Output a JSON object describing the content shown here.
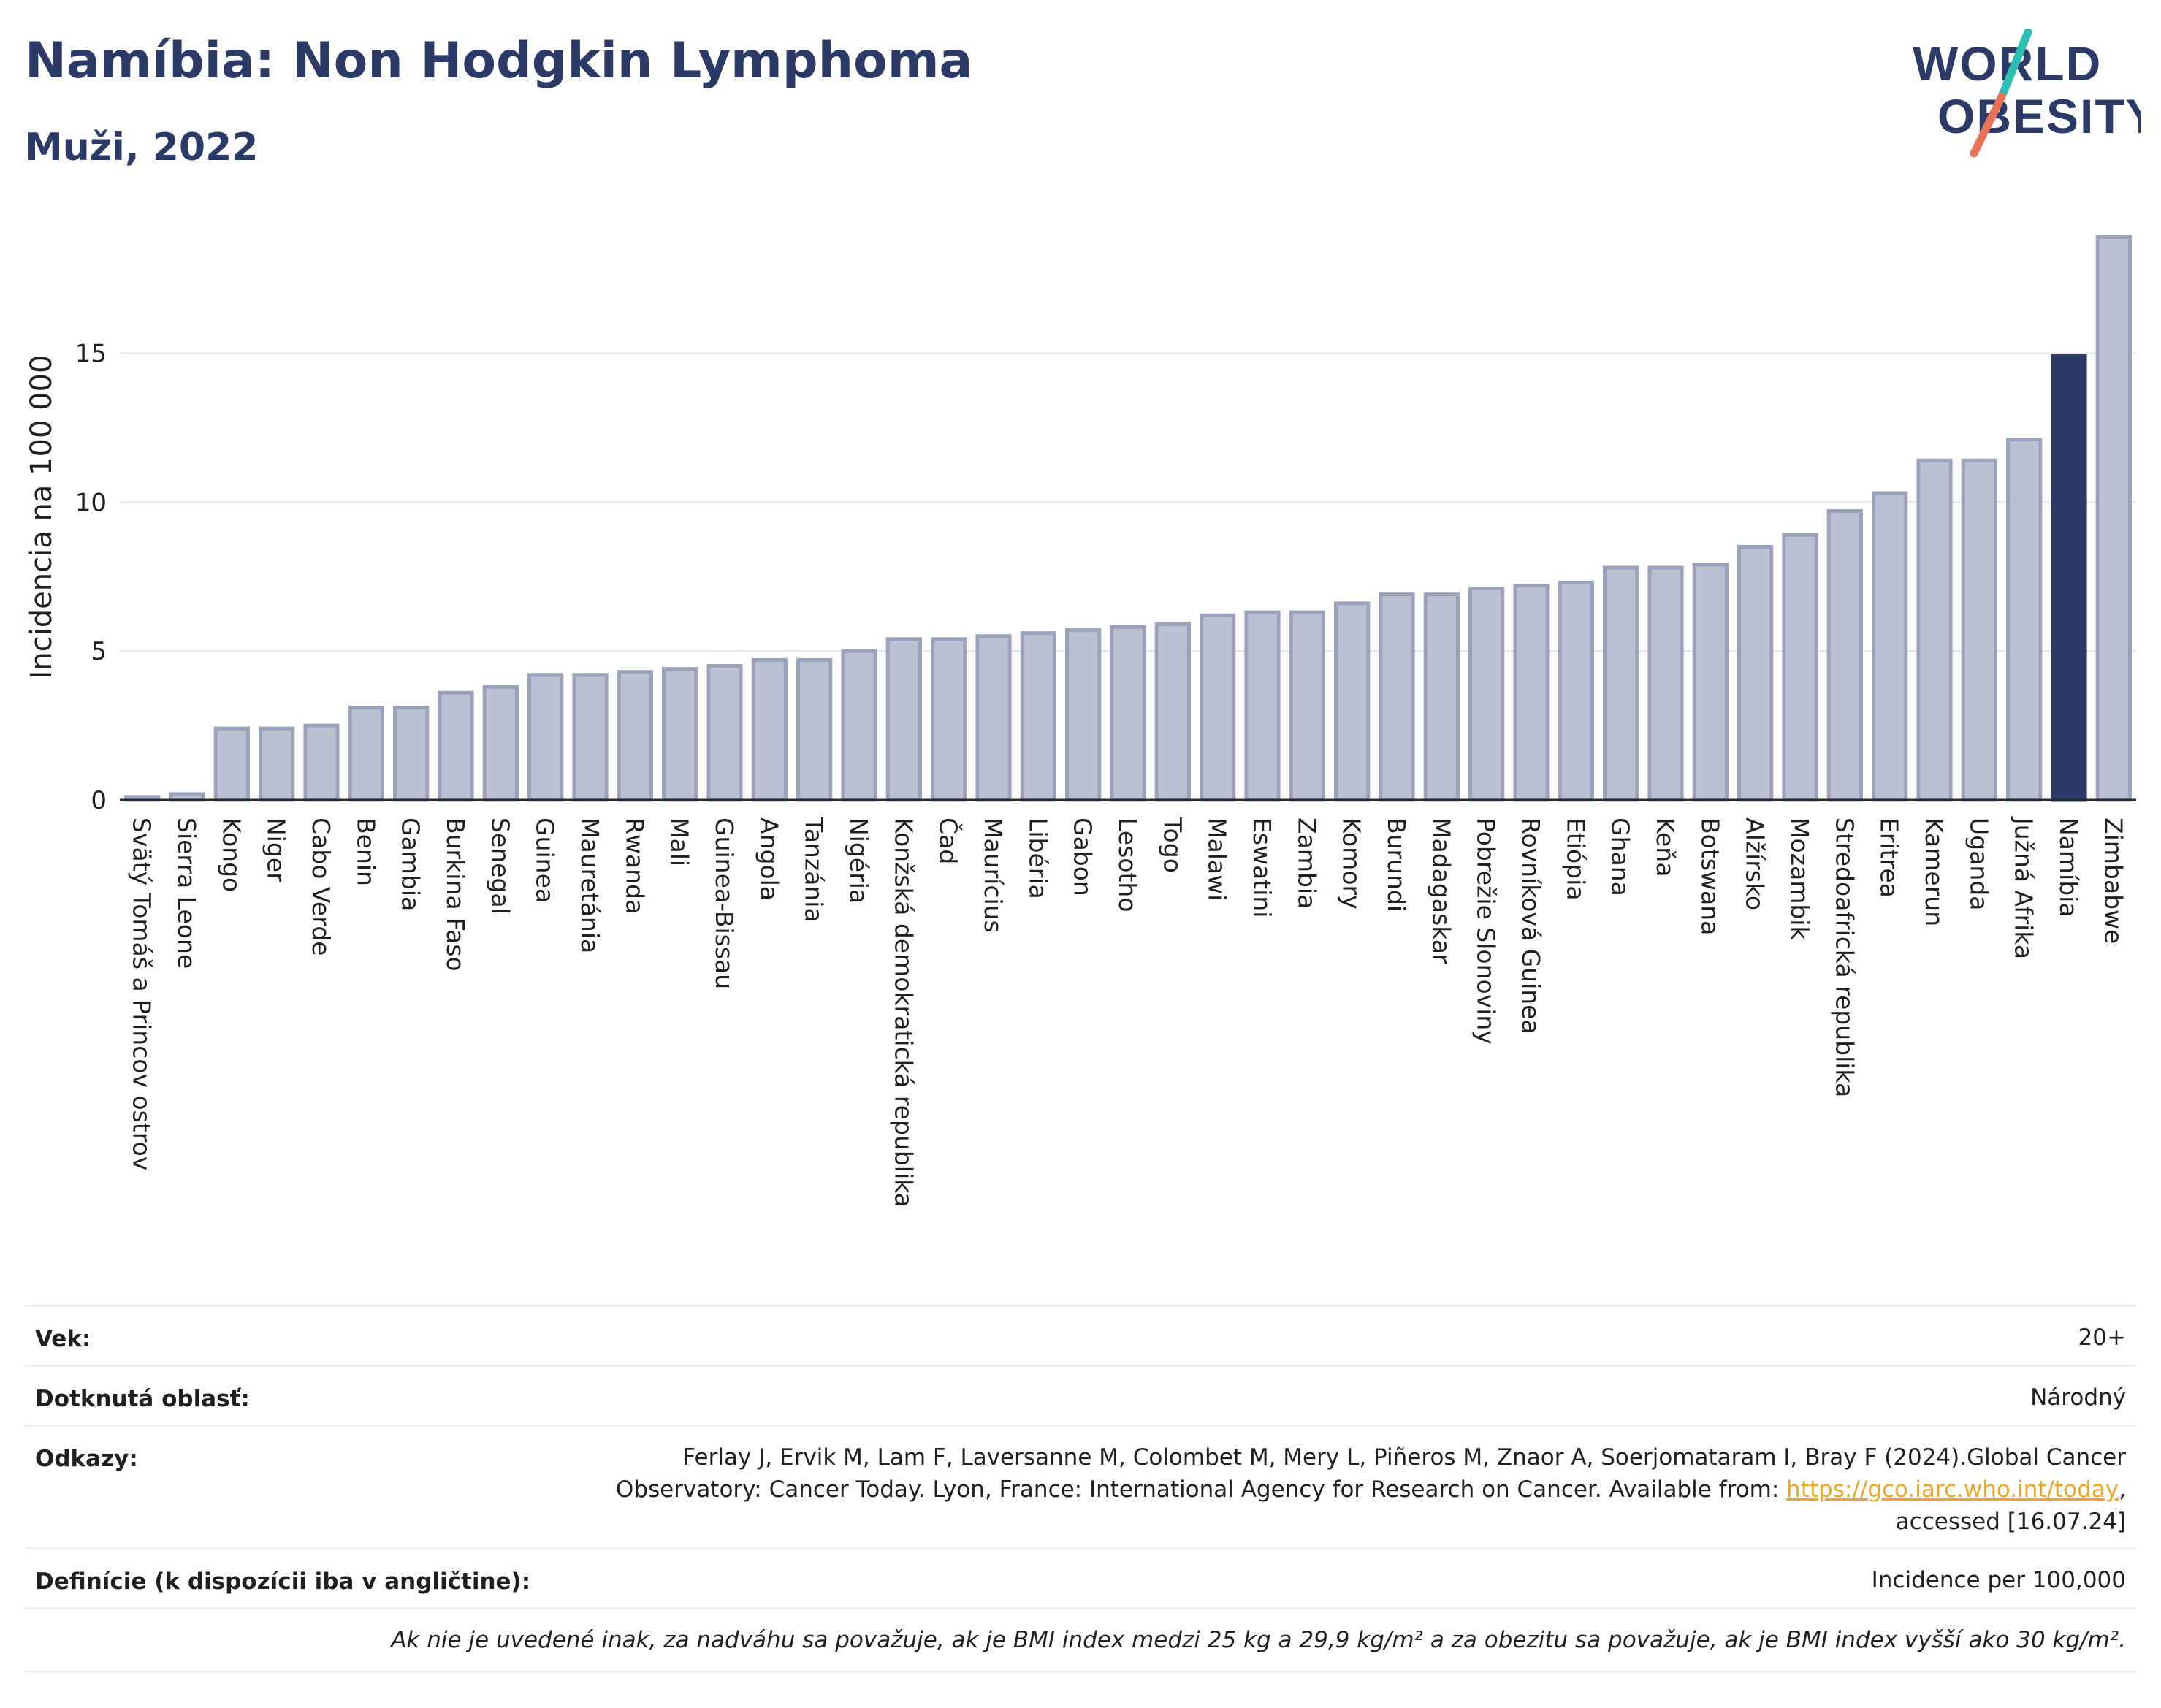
{
  "header": {
    "title": "Namíbia: Non Hodgkin Lymphoma",
    "subtitle": "Muži, 2022",
    "logo_line1": "WORLD",
    "logo_line2": "OBESITY"
  },
  "colors": {
    "title": "#2b3a67",
    "bar_default": "#bcc1d1",
    "bar_default_stroke": "#9aa1bb",
    "bar_highlight": "#2b3a67",
    "logo_text": "#2b3a67",
    "logo_slash_top": "#2bbfb3",
    "logo_slash_bottom": "#e8735a"
  },
  "chart_data": {
    "type": "bar",
    "ylabel": "Incidencia na 100 000",
    "xlabel": "",
    "ylim": [
      0,
      19.5
    ],
    "yticks": [
      0,
      5,
      10,
      15
    ],
    "grid": true,
    "highlight": "Namíbia",
    "categories": [
      "Svätý Tomáš a Princov ostrov",
      "Sierra Leone",
      "Kongo",
      "Niger",
      "Cabo Verde",
      "Benin",
      "Gambia",
      "Burkina Faso",
      "Senegal",
      "Guinea",
      "Mauretánia",
      "Rwanda",
      "Mali",
      "Guinea-Bissau",
      "Angola",
      "Tanzánia",
      "Nigéria",
      "Konžská demokratická republika",
      "Čad",
      "Maurícius",
      "Libéria",
      "Gabon",
      "Lesotho",
      "Togo",
      "Malawi",
      "Eswatini",
      "Zambia",
      "Komory",
      "Burundi",
      "Madagaskar",
      "Pobrežie Slonoviny",
      "Rovníková Guinea",
      "Etiópia",
      "Ghana",
      "Keňa",
      "Botswana",
      "Alžírsko",
      "Mozambik",
      "Stredoafrická republika",
      "Eritrea",
      "Kamerun",
      "Uganda",
      "Južná Afrika",
      "Namíbia",
      "Zimbabwe"
    ],
    "values": [
      0.1,
      0.2,
      2.4,
      2.4,
      2.5,
      3.1,
      3.1,
      3.6,
      3.8,
      4.2,
      4.2,
      4.3,
      4.4,
      4.5,
      4.7,
      4.7,
      5.0,
      5.4,
      5.4,
      5.5,
      5.6,
      5.7,
      5.8,
      5.9,
      6.2,
      6.3,
      6.3,
      6.6,
      6.9,
      6.9,
      7.1,
      7.2,
      7.3,
      7.8,
      7.8,
      7.9,
      8.5,
      8.9,
      9.7,
      10.3,
      11.4,
      11.4,
      12.1,
      14.9,
      18.9
    ]
  },
  "meta": {
    "age_label": "Vek:",
    "age_value": "20+",
    "area_label": "Dotknutá oblasť:",
    "area_value": "Národný",
    "refs_label": "Odkazy:",
    "refs_line1": "Ferlay J, Ervik M, Lam F, Laversanne M, Colombet M, Mery L, Piñeros M, Znaor A, Soerjomataram I, Bray F (2024).Global Cancer",
    "refs_line2_prefix": "Observatory: Cancer Today. Lyon, France: International Agency for Research on Cancer. Available from: ",
    "refs_link": "https://gco.iarc.who.int/today",
    "refs_line2_suffix": ",",
    "refs_line3": "accessed [16.07.24]",
    "def_label": "Definície (k dispozícii iba v angličtine):",
    "def_value": "Incidence per 100,000",
    "note": "Ak nie je uvedené inak, za nadváhu sa považuje, ak je BMI index medzi 25 kg a 29,9 kg/m² a za obezitu sa považuje, ak je BMI index vyšší ako 30 kg/m²."
  }
}
